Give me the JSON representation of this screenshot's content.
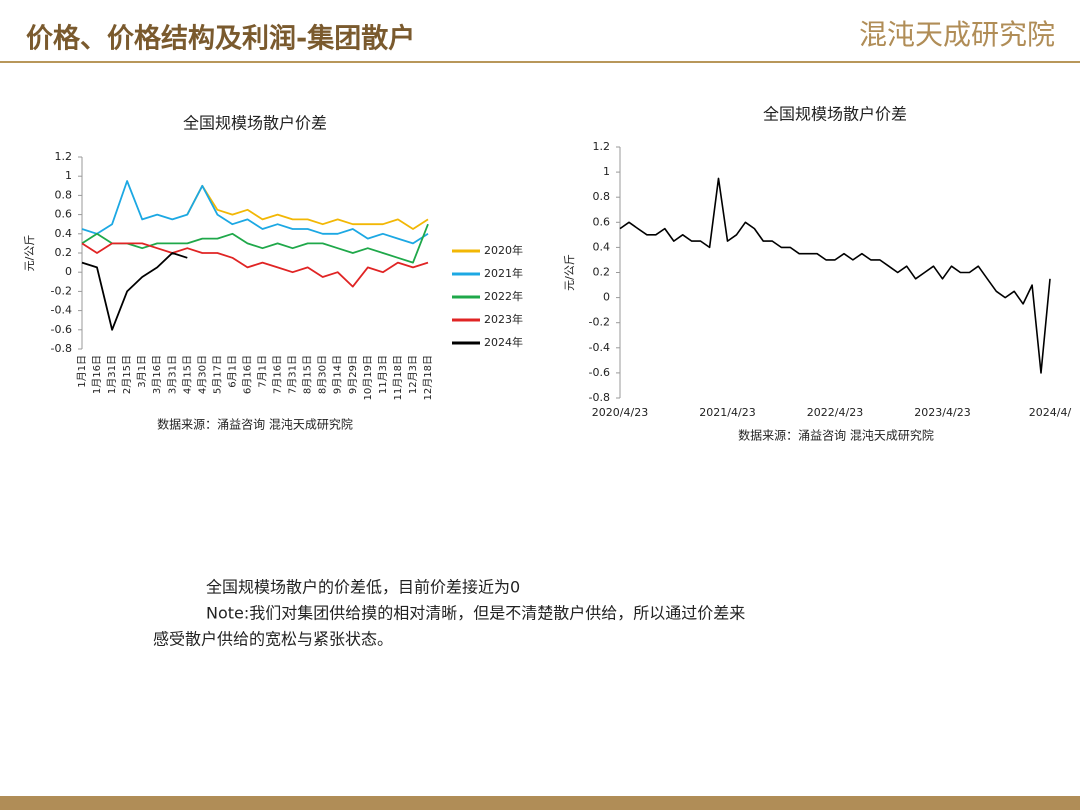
{
  "header": {
    "title": "价格、价格结构及利润-集团散户",
    "logo": "混沌天成研究院"
  },
  "body": [
    "全国规模场散户的价差低，目前价差接近为0",
    "Note:我们对集团供给摸的相对清晰，但是不清楚散户供给，所以通过价差来",
    "感受散户供给的宽松与紧张状态。"
  ],
  "chart_data": [
    {
      "type": "line",
      "title": "全国规模场散户价差",
      "y_label": "元/公斤",
      "source": "数据来源：涌益咨询 混沌天成研究院",
      "categories": [
        "1月1日",
        "1月16日",
        "1月31日",
        "2月15日",
        "3月1日",
        "3月16日",
        "3月31日",
        "4月15日",
        "4月30日",
        "5月17日",
        "6月1日",
        "6月16日",
        "7月1日",
        "7月16日",
        "7月31日",
        "8月15日",
        "8月30日",
        "9月14日",
        "9月29日",
        "10月19日",
        "11月3日",
        "11月18日",
        "12月3日",
        "12月18日"
      ],
      "series": [
        {
          "name": "2020年",
          "color": "#f2b705",
          "values": [
            null,
            null,
            null,
            null,
            null,
            null,
            null,
            0.6,
            0.9,
            0.65,
            0.6,
            0.65,
            0.55,
            0.6,
            0.55,
            0.55,
            0.5,
            0.55,
            0.5,
            0.5,
            0.5,
            0.55,
            0.45,
            0.55
          ]
        },
        {
          "name": "2021年",
          "color": "#1ca8e3",
          "values": [
            0.45,
            0.4,
            0.5,
            0.95,
            0.55,
            0.6,
            0.55,
            0.6,
            0.9,
            0.6,
            0.5,
            0.55,
            0.45,
            0.5,
            0.45,
            0.45,
            0.4,
            0.4,
            0.45,
            0.35,
            0.4,
            0.35,
            0.3,
            0.4
          ]
        },
        {
          "name": "2022年",
          "color": "#1fa84a",
          "values": [
            0.3,
            0.4,
            0.3,
            0.3,
            0.25,
            0.3,
            0.3,
            0.3,
            0.35,
            0.35,
            0.4,
            0.3,
            0.25,
            0.3,
            0.25,
            0.3,
            0.3,
            0.25,
            0.2,
            0.25,
            0.2,
            0.15,
            0.1,
            0.5
          ]
        },
        {
          "name": "2023年",
          "color": "#e02424",
          "values": [
            0.3,
            0.2,
            0.3,
            0.3,
            0.3,
            0.25,
            0.2,
            0.25,
            0.2,
            0.2,
            0.15,
            0.05,
            0.1,
            0.05,
            0,
            0.05,
            -0.05,
            0,
            -0.15,
            0.05,
            0,
            0.1,
            0.05,
            0.1
          ]
        },
        {
          "name": "2024年",
          "color": "#000000",
          "values": [
            0.1,
            0.05,
            -0.6,
            -0.2,
            -0.05,
            0.05,
            0.2,
            0.15,
            null,
            null,
            null,
            null,
            null,
            null,
            null,
            null,
            null,
            null,
            null,
            null,
            null,
            null,
            null,
            null
          ]
        }
      ],
      "ylim": [
        -0.8,
        1.2
      ],
      "yticks": [
        -0.8,
        -0.6,
        -0.4,
        -0.2,
        0,
        0.2,
        0.4,
        0.6,
        0.8,
        1,
        1.2
      ],
      "grid": false,
      "legend": "right"
    },
    {
      "type": "line",
      "title": "全国规模场散户价差",
      "y_label": "元/公斤",
      "source": "数据来源：涌益咨询 混沌天成研究院",
      "categories": [
        "2020/4/23",
        null,
        null,
        null,
        null,
        null,
        null,
        null,
        null,
        null,
        null,
        null,
        "2021/4/23",
        null,
        null,
        null,
        null,
        null,
        null,
        null,
        null,
        null,
        null,
        null,
        "2022/4/23",
        null,
        null,
        null,
        null,
        null,
        null,
        null,
        null,
        null,
        null,
        null,
        "2023/4/23",
        null,
        null,
        null,
        null,
        null,
        null,
        null,
        null,
        null,
        null,
        null,
        "2024/4/"
      ],
      "series": [
        {
          "name": null,
          "color": "#000000",
          "values": [
            0.55,
            0.6,
            0.55,
            0.5,
            0.5,
            0.55,
            0.45,
            0.5,
            0.45,
            0.45,
            0.4,
            0.95,
            0.45,
            0.5,
            0.6,
            0.55,
            0.45,
            0.45,
            0.4,
            0.4,
            0.35,
            0.35,
            0.35,
            0.3,
            0.3,
            0.35,
            0.3,
            0.35,
            0.3,
            0.3,
            0.25,
            0.2,
            0.25,
            0.15,
            0.2,
            0.25,
            0.15,
            0.25,
            0.2,
            0.2,
            0.25,
            0.15,
            0.05,
            0,
            0.05,
            -0.05,
            0.1,
            -0.6,
            0.15
          ]
        }
      ],
      "ylim": [
        -0.8,
        1.2
      ],
      "yticks": [
        -0.8,
        -0.6,
        -0.4,
        -0.2,
        0,
        0.2,
        0.4,
        0.6,
        0.8,
        1,
        1.2
      ],
      "grid": false
    }
  ]
}
